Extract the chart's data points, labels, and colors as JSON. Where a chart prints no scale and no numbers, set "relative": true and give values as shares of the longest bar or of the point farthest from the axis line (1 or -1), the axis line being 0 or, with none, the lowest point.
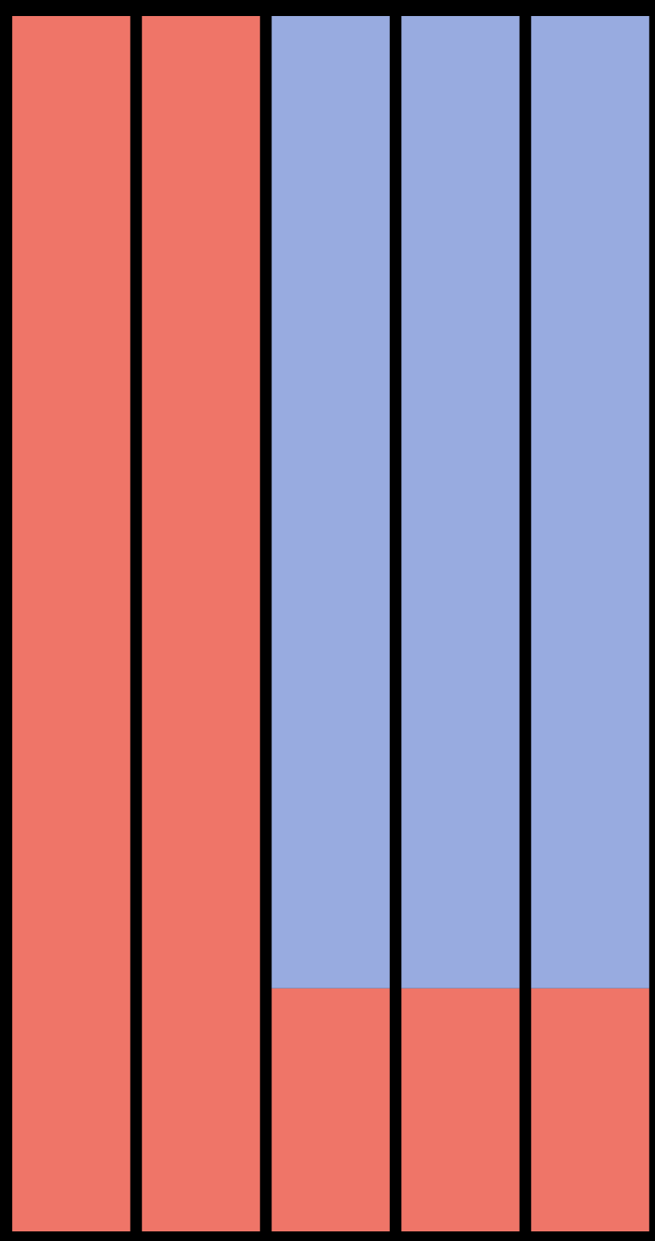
{
  "chart_data": {
    "type": "bar",
    "stacked": true,
    "relative": true,
    "categories": [
      null,
      null,
      null,
      null,
      null
    ],
    "series": [
      {
        "color": "#ef7568",
        "values": [
          1,
          1,
          0.2,
          0.2,
          0.2
        ]
      },
      {
        "color": "#98abe0",
        "values": [
          0,
          0,
          0.8,
          0.8,
          0.8
        ]
      }
    ]
  }
}
